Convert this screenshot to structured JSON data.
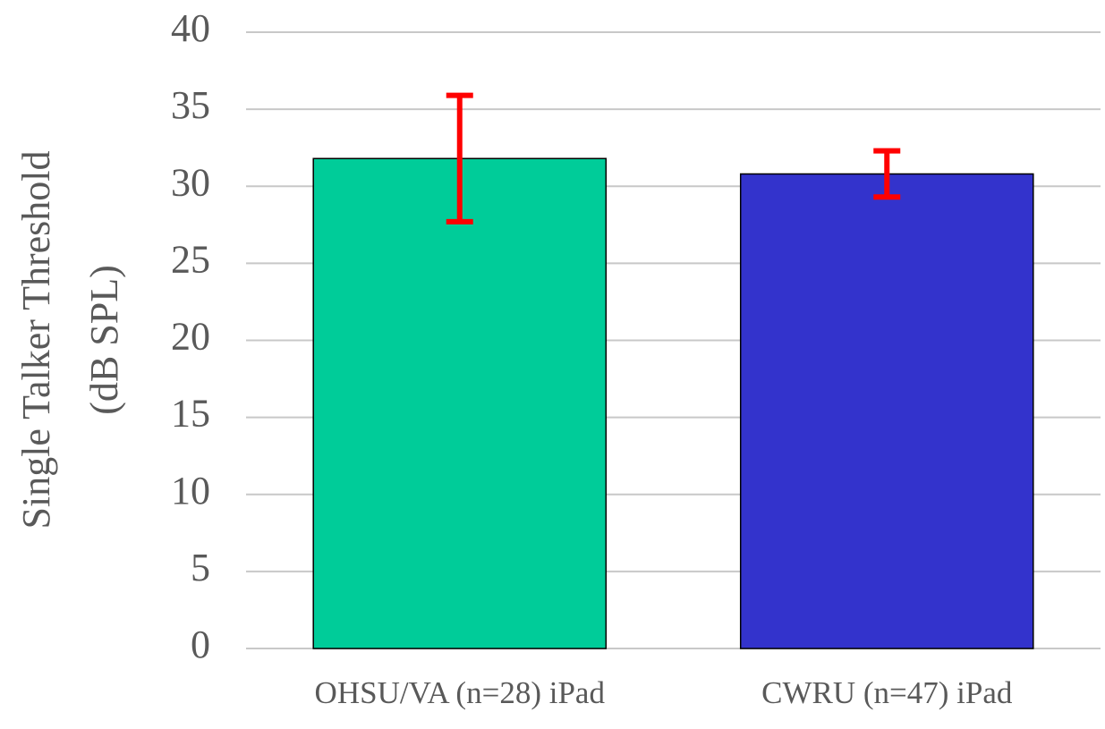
{
  "chart_data": {
    "type": "bar",
    "ylabel": [
      "Single Talker Threshold",
      "(dB SPL)"
    ],
    "categories": [
      "OHSU/VA (n=28) iPad",
      "CWRU (n=47) iPad"
    ],
    "values": [
      31.8,
      30.8
    ],
    "errors": [
      4.1,
      1.5
    ],
    "colors": [
      "#00cc99",
      "#3333cc"
    ],
    "error_color": "#ff0000",
    "ylim": [
      0,
      40
    ],
    "yticks": [
      0,
      5,
      10,
      15,
      20,
      25,
      30,
      35,
      40
    ],
    "grid": true
  }
}
